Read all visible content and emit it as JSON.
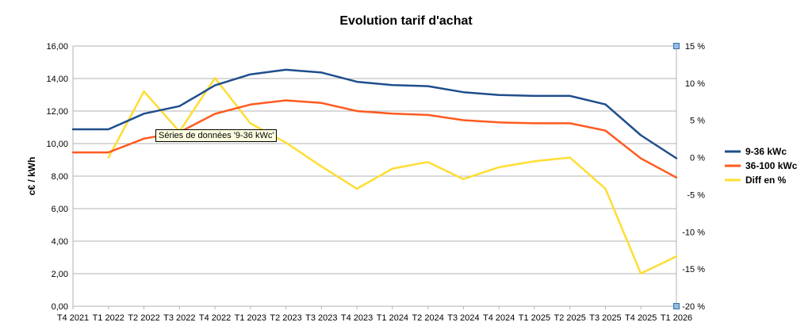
{
  "chart_data": {
    "type": "line",
    "title": "Evolution tarif d'achat",
    "ylabel": "c€ / kWh",
    "categories": [
      "T4 2021",
      "T1 2022",
      "T2 2022",
      "T3 2022",
      "T4 2022",
      "T1 2023",
      "T2 2023",
      "T3 2023",
      "T4 2023",
      "T1 2024",
      "T2 2024",
      "T3 2024",
      "T4 2024",
      "T1 2025",
      "T2 2025",
      "T3 2025",
      "T4 2025",
      "T1 2026"
    ],
    "ylim": [
      0,
      16
    ],
    "yticks": [
      "0,00",
      "2,00",
      "4,00",
      "6,00",
      "8,00",
      "10,00",
      "12,00",
      "14,00",
      "16,00"
    ],
    "y2lim": [
      -20,
      15
    ],
    "y2ticks": [
      "-20 %",
      "-15 %",
      "-10 %",
      "-5 %",
      "0 %",
      "5 %",
      "10 %",
      "15 %"
    ],
    "grid": "horizontal",
    "legend_position": "right",
    "series": [
      {
        "name": "9-36 kWc",
        "axis": "left",
        "color": "#1f4e8c",
        "values": [
          10.88,
          10.88,
          11.84,
          12.3,
          13.58,
          14.26,
          14.54,
          14.37,
          13.8,
          13.6,
          13.53,
          13.16,
          12.99,
          12.93,
          12.93,
          12.41,
          10.51,
          9.1
        ]
      },
      {
        "name": "36-100 kWc",
        "axis": "left",
        "color": "#ff5a1f",
        "values": [
          9.46,
          9.46,
          10.3,
          10.7,
          11.83,
          12.4,
          12.66,
          12.5,
          12.0,
          11.84,
          11.76,
          11.44,
          11.3,
          11.25,
          11.25,
          10.8,
          9.09,
          7.91
        ]
      },
      {
        "name": "Diff en %",
        "axis": "right",
        "color": "#ffdd33",
        "values": [
          null,
          0.0,
          8.9,
          3.5,
          10.7,
          4.6,
          2.0,
          -1.2,
          -4.2,
          -1.5,
          -0.6,
          -2.9,
          -1.3,
          -0.5,
          0.0,
          -4.2,
          -15.6,
          -13.3
        ]
      }
    ],
    "tooltip": "Séries de données '9-36 kWc'"
  }
}
